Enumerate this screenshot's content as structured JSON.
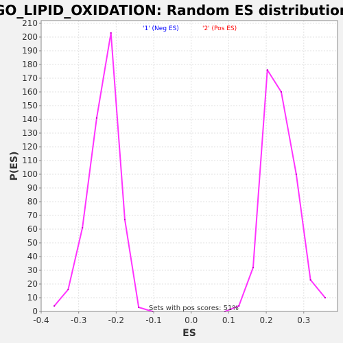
{
  "chart_data": {
    "type": "line",
    "title": "GO_LIPID_OXIDATION: Random ES distribution",
    "xlabel": "ES",
    "ylabel": "P(ES)",
    "xlim": [
      -0.4,
      0.39
    ],
    "ylim": [
      0,
      212
    ],
    "xticks": [
      -0.4,
      -0.3,
      -0.2,
      -0.1,
      0.0,
      0.1,
      0.2,
      0.3
    ],
    "xtick_labels": [
      "-0.4",
      "-0.3",
      "-0.2",
      "-0.1",
      "0.0",
      "0.1",
      "0.2",
      "0.3"
    ],
    "yticks": [
      0,
      10,
      20,
      30,
      40,
      50,
      60,
      70,
      80,
      90,
      100,
      110,
      120,
      130,
      140,
      150,
      160,
      170,
      180,
      190,
      200,
      210
    ],
    "grid": true,
    "legend_position": "top-center",
    "series": [
      {
        "name": "'1' (Neg ES)",
        "legend_color": "#0000ff",
        "line_color": "#ff33ff",
        "points": [
          {
            "x": -0.365,
            "y": 4
          },
          {
            "x": -0.328,
            "y": 16
          },
          {
            "x": -0.29,
            "y": 61
          },
          {
            "x": -0.252,
            "y": 141
          },
          {
            "x": -0.214,
            "y": 203
          },
          {
            "x": -0.177,
            "y": 67
          },
          {
            "x": -0.14,
            "y": 3
          },
          {
            "x": -0.103,
            "y": 0
          }
        ]
      },
      {
        "name": "'2' (Pos ES)",
        "legend_color": "#ff0000",
        "line_color": "#ff33ff",
        "points": [
          {
            "x": 0.09,
            "y": 0
          },
          {
            "x": 0.127,
            "y": 4
          },
          {
            "x": 0.165,
            "y": 32
          },
          {
            "x": 0.203,
            "y": 176
          },
          {
            "x": 0.24,
            "y": 160
          },
          {
            "x": 0.28,
            "y": 100
          },
          {
            "x": 0.318,
            "y": 23
          },
          {
            "x": 0.357,
            "y": 10
          }
        ]
      }
    ],
    "annotation": "Sets with pos scores: 51%"
  }
}
